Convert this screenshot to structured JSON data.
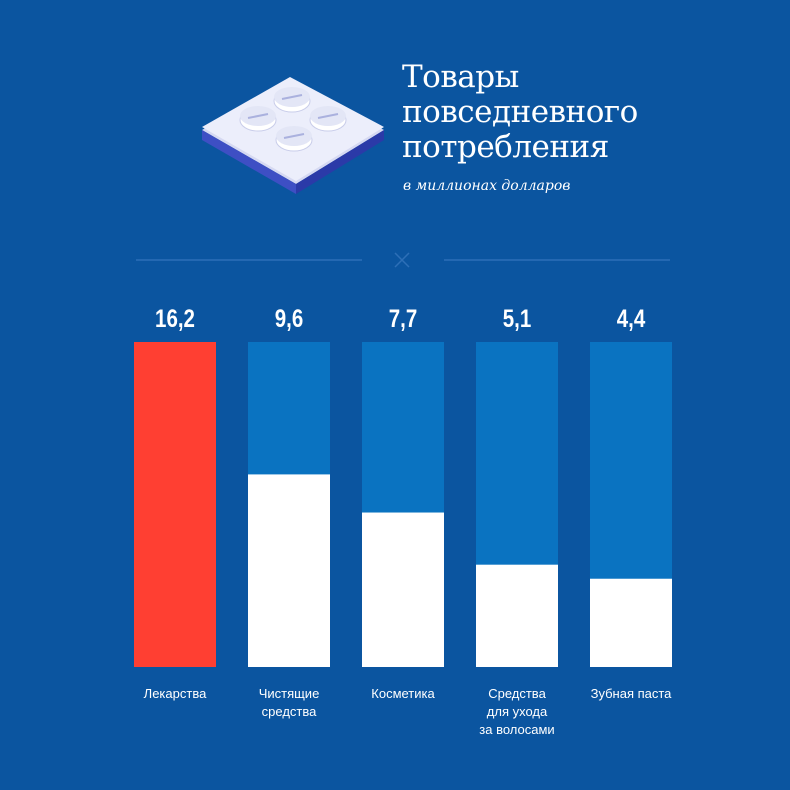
{
  "colors": {
    "background": "#0b55a0",
    "bar_track": "#0a73c1",
    "bar_fill": "#ffffff",
    "bar_highlight": "#ff3f32",
    "divider": "#2d6fb7"
  },
  "header": {
    "icon": "pill-blister-pack-icon",
    "title_lines": [
      "Товары",
      "повседневного",
      "потребления"
    ],
    "subtitle": "в миллионах долларов"
  },
  "chart_data": {
    "type": "bar",
    "title": "Товары повседневного потребления",
    "subtitle": "в миллионах долларов",
    "categories": [
      [
        "Лекарства"
      ],
      [
        "Чистящие",
        "средства"
      ],
      [
        "Косметика"
      ],
      [
        "Средства",
        "для ухода",
        "за волосами"
      ],
      [
        "Зубная паста"
      ]
    ],
    "values": [
      16.2,
      9.6,
      7.7,
      5.1,
      4.4
    ],
    "value_labels": [
      "16,2",
      "9,6",
      "7,7",
      "5,1",
      "4,4"
    ],
    "ylim": [
      0,
      16.2
    ],
    "highlight_index": 0,
    "grid": false,
    "legend": "none",
    "xlabel": "",
    "ylabel": ""
  }
}
